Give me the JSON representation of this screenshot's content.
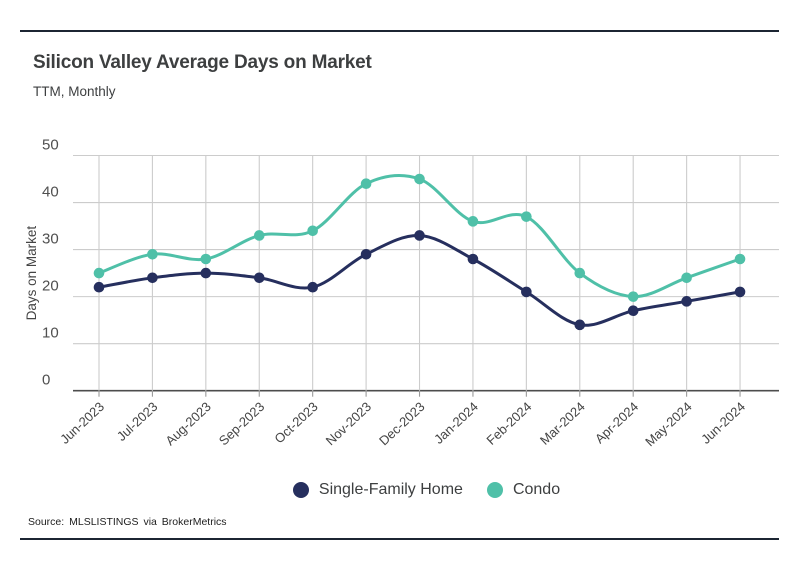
{
  "header": {
    "title": "Silicon Valley Average Days on Market",
    "subtitle": "TTM, Monthly"
  },
  "chart_data": {
    "type": "line",
    "title": "Silicon Valley Average Days on Market",
    "subtitle": "TTM, Monthly",
    "xlabel": "",
    "ylabel": "Days on Market",
    "ylim": [
      0,
      50
    ],
    "ytick_step": 10,
    "yticks": [
      0,
      10,
      20,
      30,
      40,
      50
    ],
    "grid": "both",
    "legend_position": "bottom",
    "categories": [
      "Jun-2023",
      "Jul-2023",
      "Aug-2023",
      "Sep-2023",
      "Oct-2023",
      "Nov-2023",
      "Dec-2023",
      "Jan-2024",
      "Feb-2024",
      "Mar-2024",
      "Apr-2024",
      "May-2024",
      "Jun-2024"
    ],
    "series": [
      {
        "name": "Single-Family Home",
        "color": "#262f5e",
        "values": [
          22,
          24,
          25,
          24,
          22,
          29,
          33,
          28,
          21,
          14,
          17,
          19,
          21
        ]
      },
      {
        "name": "Condo",
        "color": "#4fc0a8",
        "values": [
          25,
          29,
          28,
          33,
          34,
          44,
          45,
          36,
          37,
          25,
          20,
          24,
          28
        ]
      }
    ]
  },
  "colors": {
    "rule": "#1c2532",
    "grid": "#cccccc",
    "axis": "#4d4d4d",
    "tick": "#9a9a9a",
    "axis_text": "#4f4f4f"
  },
  "footer": {
    "source": "Source: MLSLISTINGS via BrokerMetrics"
  }
}
